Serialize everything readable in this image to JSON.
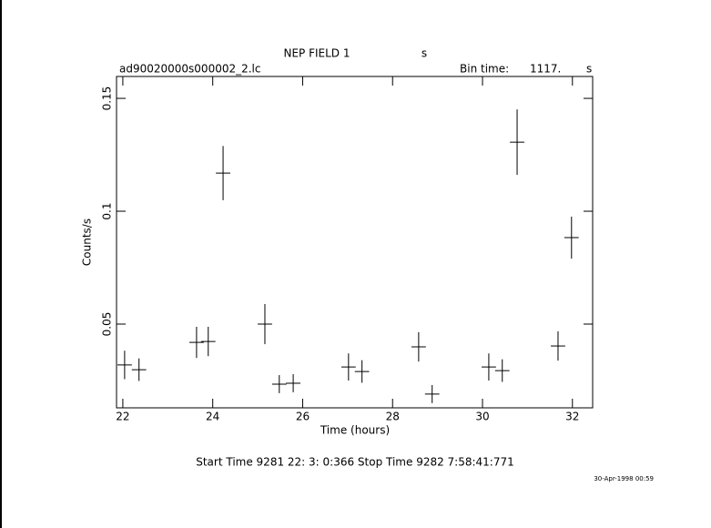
{
  "chart_data": {
    "type": "errorbar",
    "title": "NEP FIELD 1",
    "title_unit": "s",
    "subtitle": "ad90020000s000002_2.lc",
    "bin_label": "Bin time:",
    "bin_value": "1117.",
    "bin_unit": "s",
    "xlabel": "Time (hours)",
    "ylabel": "Counts/s",
    "footer": "Start Time  9281 22: 3: 0:366    Stop Time  9282  7:58:41:771",
    "date": "30-Apr-1998 00:59",
    "color": "#000000",
    "x": [
      22.04,
      22.36,
      23.64,
      23.9,
      24.23,
      25.16,
      25.48,
      25.79,
      27.02,
      27.32,
      28.58,
      28.88,
      30.14,
      30.44,
      30.77,
      31.68,
      31.98
    ],
    "xerr": [
      0.16,
      0.16,
      0.16,
      0.16,
      0.16,
      0.16,
      0.16,
      0.16,
      0.16,
      0.16,
      0.16,
      0.16,
      0.16,
      0.16,
      0.16,
      0.16,
      0.16
    ],
    "values": [
      0.0319,
      0.0298,
      0.0419,
      0.0423,
      0.1169,
      0.05,
      0.0234,
      0.0238,
      0.031,
      0.029,
      0.0399,
      0.019,
      0.031,
      0.0294,
      0.1306,
      0.0403,
      0.0883
    ],
    "yerr": [
      0.0063,
      0.005,
      0.0069,
      0.0065,
      0.012,
      0.0089,
      0.004,
      0.004,
      0.006,
      0.005,
      0.0065,
      0.004,
      0.006,
      0.005,
      0.0145,
      0.0065,
      0.0093
    ],
    "xlim": [
      21.86,
      32.45
    ],
    "ylim": [
      0.0129,
      0.1597
    ],
    "xticks": [
      22,
      24,
      26,
      28,
      30,
      32
    ],
    "yticks": [
      0.05,
      0.1,
      0.15
    ]
  }
}
